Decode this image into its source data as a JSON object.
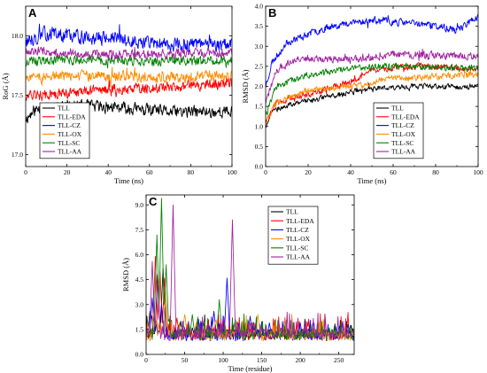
{
  "figure": {
    "background": "#ffffff"
  },
  "chart_data": [
    {
      "type": "line",
      "panel_letter": "A",
      "xlabel": "Time (ns)",
      "ylabel": "RoG (Å)",
      "xlim": [
        0,
        100
      ],
      "ylim": [
        16.9,
        18.25
      ],
      "x_ticks": [
        0,
        20,
        40,
        60,
        80,
        100
      ],
      "x_tick_labels": [
        "0",
        "20",
        "40",
        "60",
        "80",
        "100"
      ],
      "y_ticks": [
        17.0,
        17.5,
        18.0
      ],
      "y_tick_labels": [
        "17.0",
        "17.5",
        "18.0"
      ],
      "grid": false,
      "legend_position": "bottom-left",
      "series": [
        {
          "name": "TLL",
          "color": "#000000",
          "profile": [
            [
              0,
              17.3
            ],
            [
              5,
              17.38
            ],
            [
              15,
              17.42
            ],
            [
              40,
              17.4
            ],
            [
              70,
              17.36
            ],
            [
              100,
              17.36
            ]
          ],
          "noise": 0.045,
          "seed": 11
        },
        {
          "name": "TLL-EDA",
          "color": "#ff0000",
          "profile": [
            [
              0,
              17.5
            ],
            [
              10,
              17.5
            ],
            [
              40,
              17.55
            ],
            [
              70,
              17.57
            ],
            [
              100,
              17.6
            ]
          ],
          "noise": 0.04,
          "seed": 12
        },
        {
          "name": "TLL-CZ",
          "color": "#0000ff",
          "profile": [
            [
              0,
              17.95
            ],
            [
              10,
              18.02
            ],
            [
              40,
              17.98
            ],
            [
              70,
              17.93
            ],
            [
              100,
              17.92
            ]
          ],
          "noise": 0.05,
          "seed": 13
        },
        {
          "name": "TLL-OX",
          "color": "#ff8c00",
          "profile": [
            [
              0,
              17.65
            ],
            [
              20,
              17.67
            ],
            [
              60,
              17.65
            ],
            [
              100,
              17.66
            ]
          ],
          "noise": 0.04,
          "seed": 14
        },
        {
          "name": "TLL-SC",
          "color": "#008000",
          "profile": [
            [
              0,
              17.78
            ],
            [
              20,
              17.8
            ],
            [
              60,
              17.79
            ],
            [
              100,
              17.79
            ]
          ],
          "noise": 0.035,
          "seed": 15
        },
        {
          "name": "TLL-AA",
          "color": "#a020a0",
          "profile": [
            [
              0,
              17.88
            ],
            [
              10,
              17.86
            ],
            [
              50,
              17.84
            ],
            [
              100,
              17.86
            ]
          ],
          "noise": 0.035,
          "seed": 16
        }
      ]
    },
    {
      "type": "line",
      "panel_letter": "B",
      "xlabel": "Time (ns)",
      "ylabel": "RMSD (Å)",
      "xlim": [
        0,
        100
      ],
      "ylim": [
        0,
        4.0
      ],
      "x_ticks": [
        0,
        20,
        40,
        60,
        80,
        100
      ],
      "x_tick_labels": [
        "0",
        "20",
        "40",
        "60",
        "80",
        "100"
      ],
      "y_ticks": [
        0.0,
        0.5,
        1.0,
        1.5,
        2.0,
        2.5,
        3.0,
        3.5,
        4.0
      ],
      "y_tick_labels": [
        "0.0",
        "0.5",
        "1.0",
        "1.5",
        "2.0",
        "2.5",
        "3.0",
        "3.5",
        "4.0"
      ],
      "grid": false,
      "legend_position": "bottom-center",
      "series": [
        {
          "name": "TLL",
          "color": "#000000",
          "profile": [
            [
              0,
              1.0
            ],
            [
              3,
              1.4
            ],
            [
              15,
              1.6
            ],
            [
              35,
              1.8
            ],
            [
              50,
              1.95
            ],
            [
              70,
              2.0
            ],
            [
              100,
              1.98
            ]
          ],
          "noise": 0.06,
          "seed": 21
        },
        {
          "name": "TLL-EDA",
          "color": "#ff0000",
          "profile": [
            [
              0,
              1.1
            ],
            [
              5,
              1.6
            ],
            [
              20,
              1.8
            ],
            [
              40,
              2.1
            ],
            [
              50,
              2.4
            ],
            [
              70,
              2.5
            ],
            [
              100,
              2.45
            ]
          ],
          "noise": 0.07,
          "seed": 22
        },
        {
          "name": "TLL-CZ",
          "color": "#0000ff",
          "profile": [
            [
              0,
              2.0
            ],
            [
              3,
              2.6
            ],
            [
              10,
              3.1
            ],
            [
              30,
              3.5
            ],
            [
              50,
              3.65
            ],
            [
              75,
              3.55
            ],
            [
              90,
              3.4
            ],
            [
              100,
              3.75
            ]
          ],
          "noise": 0.08,
          "seed": 23
        },
        {
          "name": "TLL-OX",
          "color": "#ff8c00",
          "profile": [
            [
              0,
              1.1
            ],
            [
              5,
              1.6
            ],
            [
              20,
              1.9
            ],
            [
              40,
              2.0
            ],
            [
              60,
              2.2
            ],
            [
              100,
              2.3
            ]
          ],
          "noise": 0.07,
          "seed": 24
        },
        {
          "name": "TLL-SC",
          "color": "#008000",
          "profile": [
            [
              0,
              1.3
            ],
            [
              5,
              2.0
            ],
            [
              20,
              2.3
            ],
            [
              40,
              2.45
            ],
            [
              60,
              2.5
            ],
            [
              100,
              2.45
            ]
          ],
          "noise": 0.07,
          "seed": 25
        },
        {
          "name": "TLL-AA",
          "color": "#a020a0",
          "profile": [
            [
              0,
              1.6
            ],
            [
              5,
              2.4
            ],
            [
              15,
              2.7
            ],
            [
              40,
              2.65
            ],
            [
              60,
              2.8
            ],
            [
              100,
              2.75
            ]
          ],
          "noise": 0.08,
          "seed": 26
        }
      ]
    },
    {
      "type": "line",
      "panel_letter": "C",
      "xlabel": "Time (residue)",
      "ylabel": "RMSD (Å)",
      "xlim": [
        0,
        270
      ],
      "ylim": [
        0,
        9.6
      ],
      "x_ticks": [
        0,
        50,
        100,
        150,
        200,
        250
      ],
      "x_tick_labels": [
        "0",
        "50",
        "100",
        "150",
        "200",
        "250"
      ],
      "y_ticks": [
        0.0,
        1.5,
        3.0,
        4.5,
        6.0,
        7.5,
        9.0
      ],
      "y_tick_labels": [
        "0.0",
        "1.5",
        "3.0",
        "4.5",
        "6.0",
        "7.5",
        "9.0"
      ],
      "grid": false,
      "legend_position": "top-right",
      "series": [
        {
          "name": "TLL",
          "color": "#000000",
          "base": 0.85,
          "seed": 31,
          "peaks": [
            [
              5,
              2.6
            ],
            [
              15,
              4.8
            ],
            [
              22,
              5.2
            ],
            [
              45,
              2.0
            ],
            [
              60,
              1.6
            ],
            [
              95,
              1.8
            ],
            [
              105,
              1.5
            ],
            [
              140,
              1.3
            ],
            [
              185,
              1.2
            ],
            [
              230,
              1.1
            ]
          ]
        },
        {
          "name": "TLL-EDA",
          "color": "#ff0000",
          "base": 0.85,
          "seed": 32,
          "peaks": [
            [
              12,
              5.9
            ],
            [
              18,
              5.0
            ],
            [
              24,
              4.6
            ],
            [
              40,
              2.2
            ],
            [
              55,
              1.8
            ],
            [
              85,
              2.0
            ],
            [
              100,
              2.2
            ],
            [
              150,
              1.5
            ],
            [
              210,
              1.3
            ]
          ]
        },
        {
          "name": "TLL-CZ",
          "color": "#0000ff",
          "base": 0.8,
          "seed": 33,
          "peaks": [
            [
              8,
              3.4
            ],
            [
              20,
              3.0
            ],
            [
              48,
              2.0
            ],
            [
              88,
              2.6
            ],
            [
              105,
              4.6
            ],
            [
              135,
              2.3
            ],
            [
              160,
              1.9
            ],
            [
              180,
              2.2
            ],
            [
              200,
              1.9
            ],
            [
              230,
              1.8
            ],
            [
              255,
              2.0
            ],
            [
              262,
              1.8
            ]
          ]
        },
        {
          "name": "TLL-OX",
          "color": "#ff8c00",
          "base": 0.8,
          "seed": 34,
          "peaks": [
            [
              10,
              2.6
            ],
            [
              25,
              3.8
            ],
            [
              50,
              2.4
            ],
            [
              65,
              1.9
            ],
            [
              90,
              2.0
            ],
            [
              118,
              1.8
            ],
            [
              145,
              2.4
            ],
            [
              170,
              1.7
            ],
            [
              205,
              1.6
            ],
            [
              245,
              1.4
            ]
          ]
        },
        {
          "name": "TLL-SC",
          "color": "#008000",
          "base": 0.85,
          "seed": 35,
          "peaks": [
            [
              14,
              7.2
            ],
            [
              20,
              9.4
            ],
            [
              26,
              5.4
            ],
            [
              60,
              2.4
            ],
            [
              75,
              2.0
            ],
            [
              95,
              3.3
            ],
            [
              115,
              1.9
            ],
            [
              150,
              1.6
            ],
            [
              190,
              1.5
            ]
          ]
        },
        {
          "name": "TLL-AA",
          "color": "#a020a0",
          "base": 0.85,
          "seed": 36,
          "peaks": [
            [
              8,
              5.6
            ],
            [
              15,
              4.3
            ],
            [
              35,
              9.0
            ],
            [
              55,
              2.0
            ],
            [
              80,
              1.8
            ],
            [
              112,
              8.1
            ],
            [
              140,
              1.9
            ],
            [
              175,
              1.6
            ],
            [
              215,
              1.5
            ]
          ]
        }
      ]
    }
  ]
}
